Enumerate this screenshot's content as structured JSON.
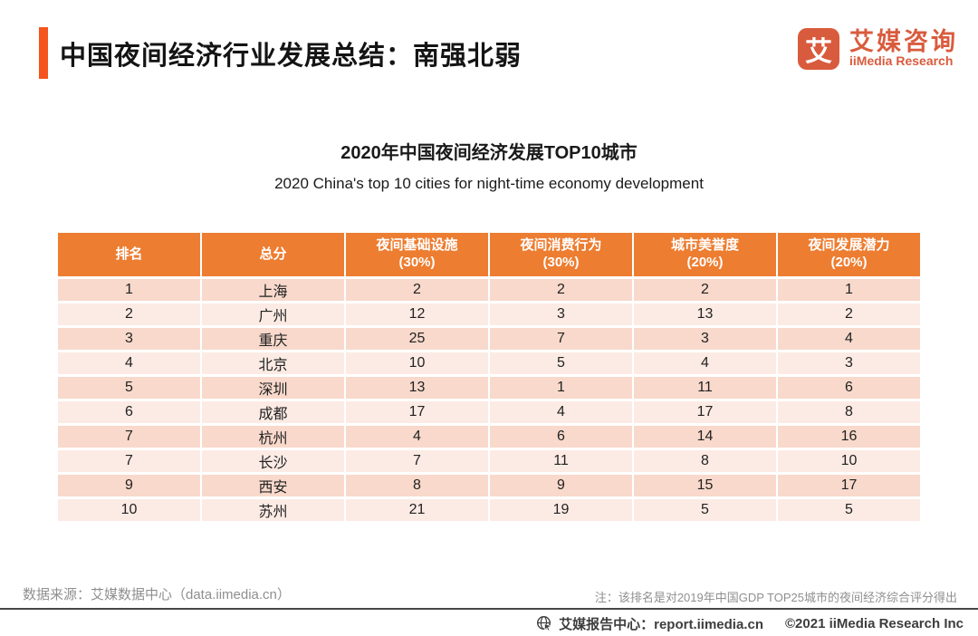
{
  "page": {
    "title": "中国夜间经济行业发展总结：南强北弱"
  },
  "logo": {
    "glyph": "艾",
    "name_cn": "艾媒咨询",
    "name_en": "iiMedia Research"
  },
  "chart": {
    "title": "2020年中国夜间经济发展TOP10城市",
    "subtitle": "2020 China's top 10 cities for night-time economy development"
  },
  "table": {
    "columns": [
      {
        "label": "排名",
        "sub": ""
      },
      {
        "label": "总分",
        "sub": ""
      },
      {
        "label": "夜间基础设施",
        "sub": "(30%)"
      },
      {
        "label": "夜间消费行为",
        "sub": "(30%)"
      },
      {
        "label": "城市美誉度",
        "sub": "(20%)"
      },
      {
        "label": "夜间发展潜力",
        "sub": "(20%)"
      }
    ],
    "rows": [
      [
        "1",
        "上海",
        "2",
        "2",
        "2",
        "1"
      ],
      [
        "2",
        "广州",
        "12",
        "3",
        "13",
        "2"
      ],
      [
        "3",
        "重庆",
        "25",
        "7",
        "3",
        "4"
      ],
      [
        "4",
        "北京",
        "10",
        "5",
        "4",
        "3"
      ],
      [
        "5",
        "深圳",
        "13",
        "1",
        "11",
        "6"
      ],
      [
        "6",
        "成都",
        "17",
        "4",
        "17",
        "8"
      ],
      [
        "7",
        "杭州",
        "4",
        "6",
        "14",
        "16"
      ],
      [
        "7",
        "长沙",
        "7",
        "11",
        "8",
        "10"
      ],
      [
        "9",
        "西安",
        "8",
        "9",
        "15",
        "17"
      ],
      [
        "10",
        "苏州",
        "21",
        "19",
        "5",
        "5"
      ]
    ]
  },
  "chart_data": {
    "type": "table",
    "title": "2020年中国夜间经济发展TOP10城市",
    "subtitle": "2020 China's top 10 cities for night-time economy development",
    "columns": [
      "排名",
      "总分",
      "夜间基础设施(30%)",
      "夜间消费行为(30%)",
      "城市美誉度(20%)",
      "夜间发展潜力(20%)"
    ],
    "rows": [
      [
        1,
        "上海",
        2,
        2,
        2,
        1
      ],
      [
        2,
        "广州",
        12,
        3,
        13,
        2
      ],
      [
        3,
        "重庆",
        25,
        7,
        3,
        4
      ],
      [
        4,
        "北京",
        10,
        5,
        4,
        3
      ],
      [
        5,
        "深圳",
        13,
        1,
        11,
        6
      ],
      [
        6,
        "成都",
        17,
        4,
        17,
        8
      ],
      [
        7,
        "杭州",
        4,
        6,
        14,
        16
      ],
      [
        7,
        "长沙",
        7,
        11,
        8,
        10
      ],
      [
        9,
        "西安",
        8,
        9,
        15,
        17
      ],
      [
        10,
        "苏州",
        21,
        19,
        5,
        5
      ]
    ]
  },
  "footer": {
    "source": "数据来源：艾媒数据中心（data.iimedia.cn）",
    "note": "注：该排名是对2019年中国GDP TOP25城市的夜间经济综合评分得出",
    "report_center": "艾媒报告中心：report.iimedia.cn",
    "copyright": "©2021  iiMedia Research Inc"
  },
  "colors": {
    "accent_bar": "#F4541D",
    "table_header": "#ED7D31",
    "row_dark": "#F8D9CB",
    "row_light": "#FCEBE4",
    "brand": "#D95B3D",
    "footer_text": "#8F8F8F"
  }
}
